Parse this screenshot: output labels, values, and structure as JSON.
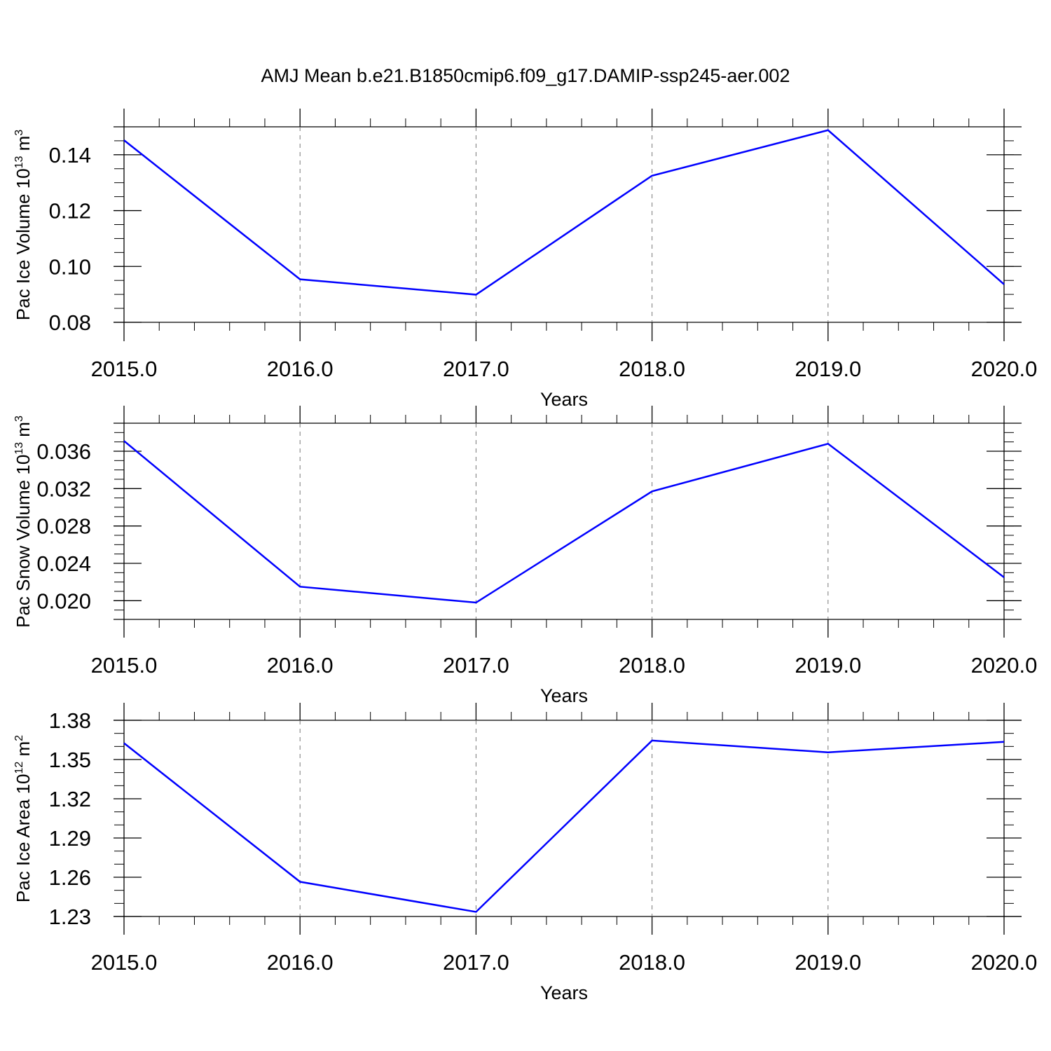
{
  "title": "AMJ Mean b.e21.B1850cmip6.f09_g17.DAMIP-ssp245-aer.002",
  "colors": {
    "line": "#0000ff",
    "axis": "#000000",
    "grid": "#777777"
  },
  "chart_data": [
    {
      "type": "line",
      "xlabel": "Years",
      "ylabel": {
        "text": "Pac Ice Volume 10",
        "sup1": "13",
        "unit": " m",
        "sup2": "3"
      },
      "x": [
        2015,
        2016,
        2017,
        2018,
        2019,
        2020
      ],
      "xticks": [
        "2015.0",
        "2016.0",
        "2017.0",
        "2018.0",
        "2019.0",
        "2020.0"
      ],
      "xlim": [
        2015,
        2020
      ],
      "ylim": [
        0.08,
        0.15
      ],
      "yticks": [
        0.08,
        0.1,
        0.12,
        0.14
      ],
      "yticklabels": [
        "0.08",
        "0.10",
        "0.12",
        "0.14"
      ],
      "yminor": 0.005,
      "grid": "vertical-dashed",
      "series": [
        {
          "values": [
            0.1452,
            0.0954,
            0.0899,
            0.1325,
            0.1488,
            0.0936
          ]
        }
      ]
    },
    {
      "type": "line",
      "xlabel": "Years",
      "ylabel": {
        "text": "Pac Snow Volume 10",
        "sup1": "13",
        "unit": " m",
        "sup2": "3"
      },
      "x": [
        2015,
        2016,
        2017,
        2018,
        2019,
        2020
      ],
      "xticks": [
        "2015.0",
        "2016.0",
        "2017.0",
        "2018.0",
        "2019.0",
        "2020.0"
      ],
      "xlim": [
        2015,
        2020
      ],
      "ylim": [
        0.018,
        0.039
      ],
      "yticks": [
        0.02,
        0.024,
        0.028,
        0.032,
        0.036
      ],
      "yticklabels": [
        "0.020",
        "0.024",
        "0.028",
        "0.032",
        "0.036"
      ],
      "yminor": 0.001,
      "grid": "vertical-dashed",
      "series": [
        {
          "values": [
            0.0371,
            0.0215,
            0.0198,
            0.0317,
            0.0368,
            0.0225
          ]
        }
      ]
    },
    {
      "type": "line",
      "xlabel": "Years",
      "ylabel": {
        "text": "Pac Ice Area 10",
        "sup1": "12",
        "unit": " m",
        "sup2": "2"
      },
      "x": [
        2015,
        2016,
        2017,
        2018,
        2019,
        2020
      ],
      "xticks": [
        "2015.0",
        "2016.0",
        "2017.0",
        "2018.0",
        "2019.0",
        "2020.0"
      ],
      "xlim": [
        2015,
        2020
      ],
      "ylim": [
        1.23,
        1.38
      ],
      "yticks": [
        1.23,
        1.26,
        1.29,
        1.32,
        1.35,
        1.38
      ],
      "yticklabels": [
        "1.23",
        "1.26",
        "1.29",
        "1.32",
        "1.35",
        "1.38"
      ],
      "yminor": 0.01,
      "grid": "vertical-dashed",
      "series": [
        {
          "values": [
            1.3625,
            1.2565,
            1.2335,
            1.3645,
            1.3555,
            1.3635
          ]
        }
      ]
    }
  ]
}
